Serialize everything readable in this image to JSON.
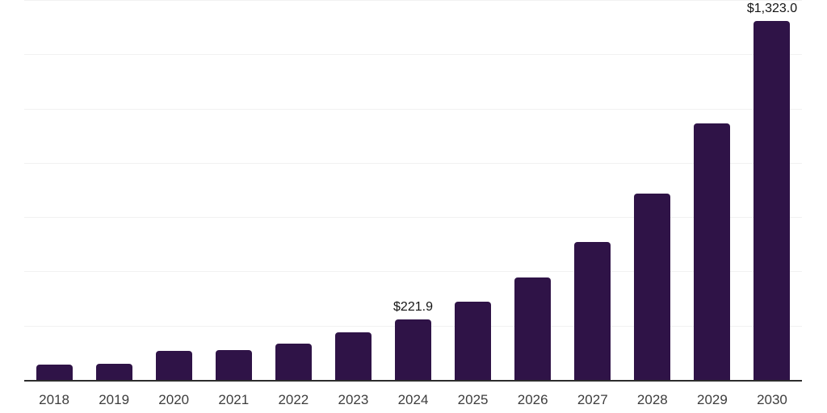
{
  "chart": {
    "background_color": "#ffffff",
    "bar_color": "#2f1347",
    "axis_color": "#2d2d2d",
    "gridline_color": "#f1f1f1",
    "year_label_color": "#3d3d3d",
    "value_label_color": "#141414"
  },
  "chart_data": {
    "type": "bar",
    "title": "",
    "xlabel": "",
    "ylabel": "",
    "categories": [
      "2018",
      "2019",
      "2020",
      "2021",
      "2022",
      "2023",
      "2024",
      "2025",
      "2026",
      "2027",
      "2028",
      "2029",
      "2030"
    ],
    "values": [
      55.1,
      59.0,
      106.6,
      110.8,
      134.0,
      175.7,
      221.9,
      289.5,
      378.9,
      508.7,
      685.7,
      946.6,
      1323.0
    ],
    "value_labels": {
      "2024": "$221.9",
      "2030": "$1,323.0"
    },
    "ylim": [
      0,
      1400
    ],
    "grid_interval": 200,
    "grid": "horizontal-only",
    "y_tick_labels": "hidden",
    "legend_position": "none"
  }
}
